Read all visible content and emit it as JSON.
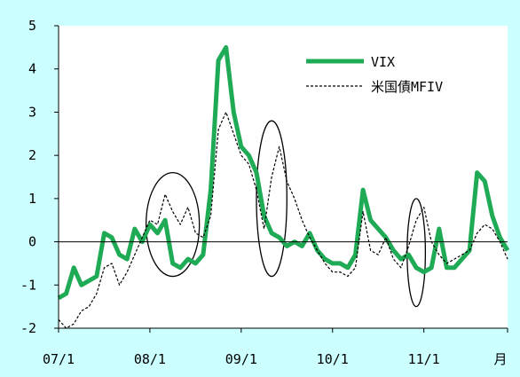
{
  "chart_data": {
    "type": "line",
    "title": "",
    "xlabel": "",
    "ylabel": "",
    "x_unit_label": "月",
    "ylim": [
      -2,
      5
    ],
    "yticks": [
      -2,
      -1,
      0,
      1,
      2,
      3,
      4,
      5
    ],
    "x_range": [
      "2007-01",
      "2011-12"
    ],
    "x_ticks": [
      {
        "x": "2007-01",
        "label": "07/1"
      },
      {
        "x": "2008-01",
        "label": "08/1"
      },
      {
        "x": "2009-01",
        "label": "09/1"
      },
      {
        "x": "2010-01",
        "label": "10/1"
      },
      {
        "x": "2011-01",
        "label": "11/1"
      }
    ],
    "grid": false,
    "zero_line": true,
    "legend_position": "top-right",
    "series": [
      {
        "name": "VIX",
        "style": "solid-thick",
        "color": "#1faa55",
        "points": [
          [
            "2007-01",
            -1.3
          ],
          [
            "2007-02",
            -1.2
          ],
          [
            "2007-03",
            -0.6
          ],
          [
            "2007-04",
            -1.0
          ],
          [
            "2007-05",
            -0.9
          ],
          [
            "2007-06",
            -0.8
          ],
          [
            "2007-07",
            0.2
          ],
          [
            "2007-08",
            0.1
          ],
          [
            "2007-09",
            -0.3
          ],
          [
            "2007-10",
            -0.4
          ],
          [
            "2007-11",
            0.3
          ],
          [
            "2007-12",
            0.0
          ],
          [
            "2008-01",
            0.4
          ],
          [
            "2008-02",
            0.2
          ],
          [
            "2008-03",
            0.5
          ],
          [
            "2008-04",
            -0.5
          ],
          [
            "2008-05",
            -0.6
          ],
          [
            "2008-06",
            -0.4
          ],
          [
            "2008-07",
            -0.5
          ],
          [
            "2008-08",
            -0.3
          ],
          [
            "2008-09",
            1.2
          ],
          [
            "2008-10",
            4.2
          ],
          [
            "2008-11",
            4.5
          ],
          [
            "2008-12",
            3.0
          ],
          [
            "2009-01",
            2.2
          ],
          [
            "2009-02",
            2.0
          ],
          [
            "2009-03",
            1.6
          ],
          [
            "2009-04",
            0.6
          ],
          [
            "2009-05",
            0.2
          ],
          [
            "2009-06",
            0.1
          ],
          [
            "2009-07",
            -0.1
          ],
          [
            "2009-08",
            0.0
          ],
          [
            "2009-09",
            -0.1
          ],
          [
            "2009-10",
            0.2
          ],
          [
            "2009-11",
            -0.2
          ],
          [
            "2009-12",
            -0.4
          ],
          [
            "2010-01",
            -0.5
          ],
          [
            "2010-02",
            -0.5
          ],
          [
            "2010-03",
            -0.6
          ],
          [
            "2010-04",
            -0.3
          ],
          [
            "2010-05",
            1.2
          ],
          [
            "2010-06",
            0.5
          ],
          [
            "2010-07",
            0.3
          ],
          [
            "2010-08",
            0.1
          ],
          [
            "2010-09",
            -0.2
          ],
          [
            "2010-10",
            -0.4
          ],
          [
            "2010-11",
            -0.3
          ],
          [
            "2010-12",
            -0.6
          ],
          [
            "2011-01",
            -0.7
          ],
          [
            "2011-02",
            -0.6
          ],
          [
            "2011-03",
            0.3
          ],
          [
            "2011-04",
            -0.6
          ],
          [
            "2011-05",
            -0.6
          ],
          [
            "2011-06",
            -0.4
          ],
          [
            "2011-07",
            -0.2
          ],
          [
            "2011-08",
            1.6
          ],
          [
            "2011-09",
            1.4
          ],
          [
            "2011-10",
            0.6
          ],
          [
            "2011-11",
            0.1
          ],
          [
            "2011-12",
            -0.2
          ]
        ]
      },
      {
        "name": "米国債MFIV",
        "style": "dashed",
        "color": "#000000",
        "points": [
          [
            "2007-01",
            -1.8
          ],
          [
            "2007-02",
            -2.0
          ],
          [
            "2007-03",
            -1.9
          ],
          [
            "2007-04",
            -1.6
          ],
          [
            "2007-05",
            -1.5
          ],
          [
            "2007-06",
            -1.2
          ],
          [
            "2007-07",
            -0.6
          ],
          [
            "2007-08",
            -0.5
          ],
          [
            "2007-09",
            -1.0
          ],
          [
            "2007-10",
            -0.7
          ],
          [
            "2007-11",
            -0.3
          ],
          [
            "2007-12",
            0.1
          ],
          [
            "2008-01",
            0.5
          ],
          [
            "2008-02",
            0.4
          ],
          [
            "2008-03",
            1.1
          ],
          [
            "2008-04",
            0.7
          ],
          [
            "2008-05",
            0.4
          ],
          [
            "2008-06",
            0.8
          ],
          [
            "2008-07",
            0.2
          ],
          [
            "2008-08",
            0.1
          ],
          [
            "2008-09",
            0.6
          ],
          [
            "2008-10",
            2.6
          ],
          [
            "2008-11",
            3.0
          ],
          [
            "2008-12",
            2.5
          ],
          [
            "2009-01",
            2.0
          ],
          [
            "2009-02",
            1.8
          ],
          [
            "2009-03",
            1.2
          ],
          [
            "2009-04",
            0.3
          ],
          [
            "2009-05",
            1.5
          ],
          [
            "2009-06",
            2.2
          ],
          [
            "2009-07",
            1.4
          ],
          [
            "2009-08",
            1.0
          ],
          [
            "2009-09",
            0.5
          ],
          [
            "2009-10",
            0.1
          ],
          [
            "2009-11",
            -0.2
          ],
          [
            "2009-12",
            -0.5
          ],
          [
            "2010-01",
            -0.7
          ],
          [
            "2010-02",
            -0.7
          ],
          [
            "2010-03",
            -0.8
          ],
          [
            "2010-04",
            -0.6
          ],
          [
            "2010-05",
            0.7
          ],
          [
            "2010-06",
            -0.2
          ],
          [
            "2010-07",
            -0.3
          ],
          [
            "2010-08",
            0.1
          ],
          [
            "2010-09",
            -0.4
          ],
          [
            "2010-10",
            -0.6
          ],
          [
            "2010-11",
            -0.1
          ],
          [
            "2010-12",
            0.5
          ],
          [
            "2011-01",
            0.8
          ],
          [
            "2011-02",
            0.0
          ],
          [
            "2011-03",
            -0.3
          ],
          [
            "2011-04",
            -0.5
          ],
          [
            "2011-05",
            -0.4
          ],
          [
            "2011-06",
            -0.3
          ],
          [
            "2011-07",
            -0.2
          ],
          [
            "2011-08",
            0.2
          ],
          [
            "2011-09",
            0.4
          ],
          [
            "2011-10",
            0.3
          ],
          [
            "2011-11",
            0.0
          ],
          [
            "2011-12",
            -0.4
          ]
        ]
      }
    ],
    "annotations": [
      {
        "type": "ellipse",
        "center_x": "2008-04",
        "center_y": 0.4,
        "rx_months": 3.5,
        "ry": 1.2
      },
      {
        "type": "ellipse",
        "center_x": "2009-05",
        "center_y": 1.0,
        "rx_months": 2.0,
        "ry": 1.8
      },
      {
        "type": "ellipse",
        "center_x": "2010-12",
        "center_y": -0.25,
        "rx_months": 1.2,
        "ry": 1.25
      }
    ]
  }
}
